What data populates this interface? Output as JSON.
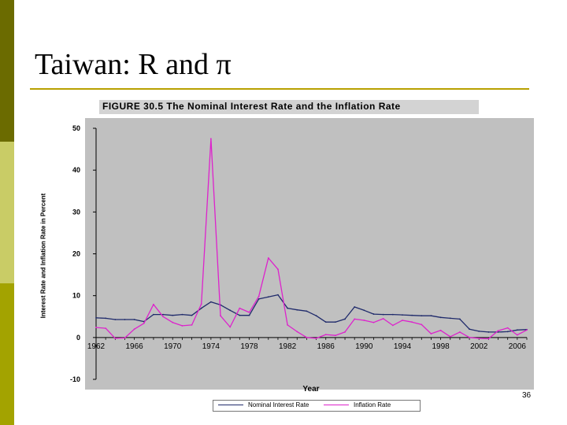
{
  "slide": {
    "title": "Taiwan: R and π",
    "page_number": "36",
    "colors": {
      "bar_dark": "#6b6b00",
      "bar_light": "#c9cc66",
      "bar_mid": "#a3a300",
      "rule": "#b8a000"
    }
  },
  "chart_data": {
    "type": "line",
    "title": "FIGURE 30.5   The Nominal Interest Rate and the Inflation Rate",
    "xlabel": "Year",
    "ylabel": "Interest Rate and Inflation Rate in Percent",
    "xlim": [
      1962,
      2007
    ],
    "ylim": [
      -10,
      50
    ],
    "xticks": [
      1962,
      1966,
      1970,
      1974,
      1978,
      1982,
      1986,
      1990,
      1994,
      1998,
      2002,
      2006
    ],
    "yticks": [
      -10,
      0,
      10,
      20,
      30,
      40,
      50
    ],
    "grid": false,
    "legend_position": "bottom",
    "series": [
      {
        "name": "Nominal Interest Rate",
        "color": "#1f2a6b",
        "x": [
          1962,
          1963,
          1964,
          1965,
          1966,
          1967,
          1968,
          1969,
          1970,
          1971,
          1972,
          1973,
          1974,
          1975,
          1976,
          1977,
          1978,
          1979,
          1980,
          1981,
          1982,
          1983,
          1984,
          1985,
          1986,
          1987,
          1988,
          1989,
          1990,
          1991,
          1992,
          1993,
          1994,
          1995,
          1996,
          1997,
          1998,
          1999,
          2000,
          2001,
          2002,
          2003,
          2004,
          2005,
          2006,
          2007
        ],
        "y": [
          4.7,
          4.6,
          4.3,
          4.3,
          4.3,
          3.8,
          5.5,
          5.5,
          5.3,
          5.5,
          5.3,
          7,
          8.5,
          7.8,
          6.5,
          5.3,
          5.3,
          9.2,
          9.7,
          10.2,
          7,
          6.6,
          6.3,
          5.2,
          3.7,
          3.7,
          4.4,
          7.3,
          6.5,
          5.6,
          5.5,
          5.5,
          5.4,
          5.3,
          5.2,
          5.2,
          4.8,
          4.6,
          4.4,
          2,
          1.5,
          1.3,
          1.3,
          1.4,
          1.8,
          1.9
        ]
      },
      {
        "name": "Inflation Rate",
        "color": "#dd22cc",
        "x": [
          1962,
          1963,
          1964,
          1965,
          1966,
          1967,
          1968,
          1969,
          1970,
          1971,
          1972,
          1973,
          1974,
          1975,
          1976,
          1977,
          1978,
          1979,
          1980,
          1981,
          1982,
          1983,
          1984,
          1985,
          1986,
          1987,
          1988,
          1989,
          1990,
          1991,
          1992,
          1993,
          1994,
          1995,
          1996,
          1997,
          1998,
          1999,
          2000,
          2001,
          2002,
          2003,
          2004,
          2005,
          2006,
          2007
        ],
        "y": [
          2.4,
          2.2,
          -0.2,
          -0.1,
          2,
          3.4,
          7.9,
          5,
          3.6,
          2.8,
          3,
          8,
          47.5,
          5.2,
          2.5,
          7,
          6,
          9.8,
          19,
          16.3,
          3,
          1.4,
          0,
          -0.2,
          0.7,
          0.5,
          1.3,
          4.4,
          4.1,
          3.6,
          4.5,
          2.9,
          4.1,
          3.7,
          3.1,
          0.9,
          1.7,
          0.2,
          1.3,
          0,
          -0.2,
          -0.3,
          1.6,
          2.3,
          0.6,
          1.8
        ]
      }
    ]
  }
}
